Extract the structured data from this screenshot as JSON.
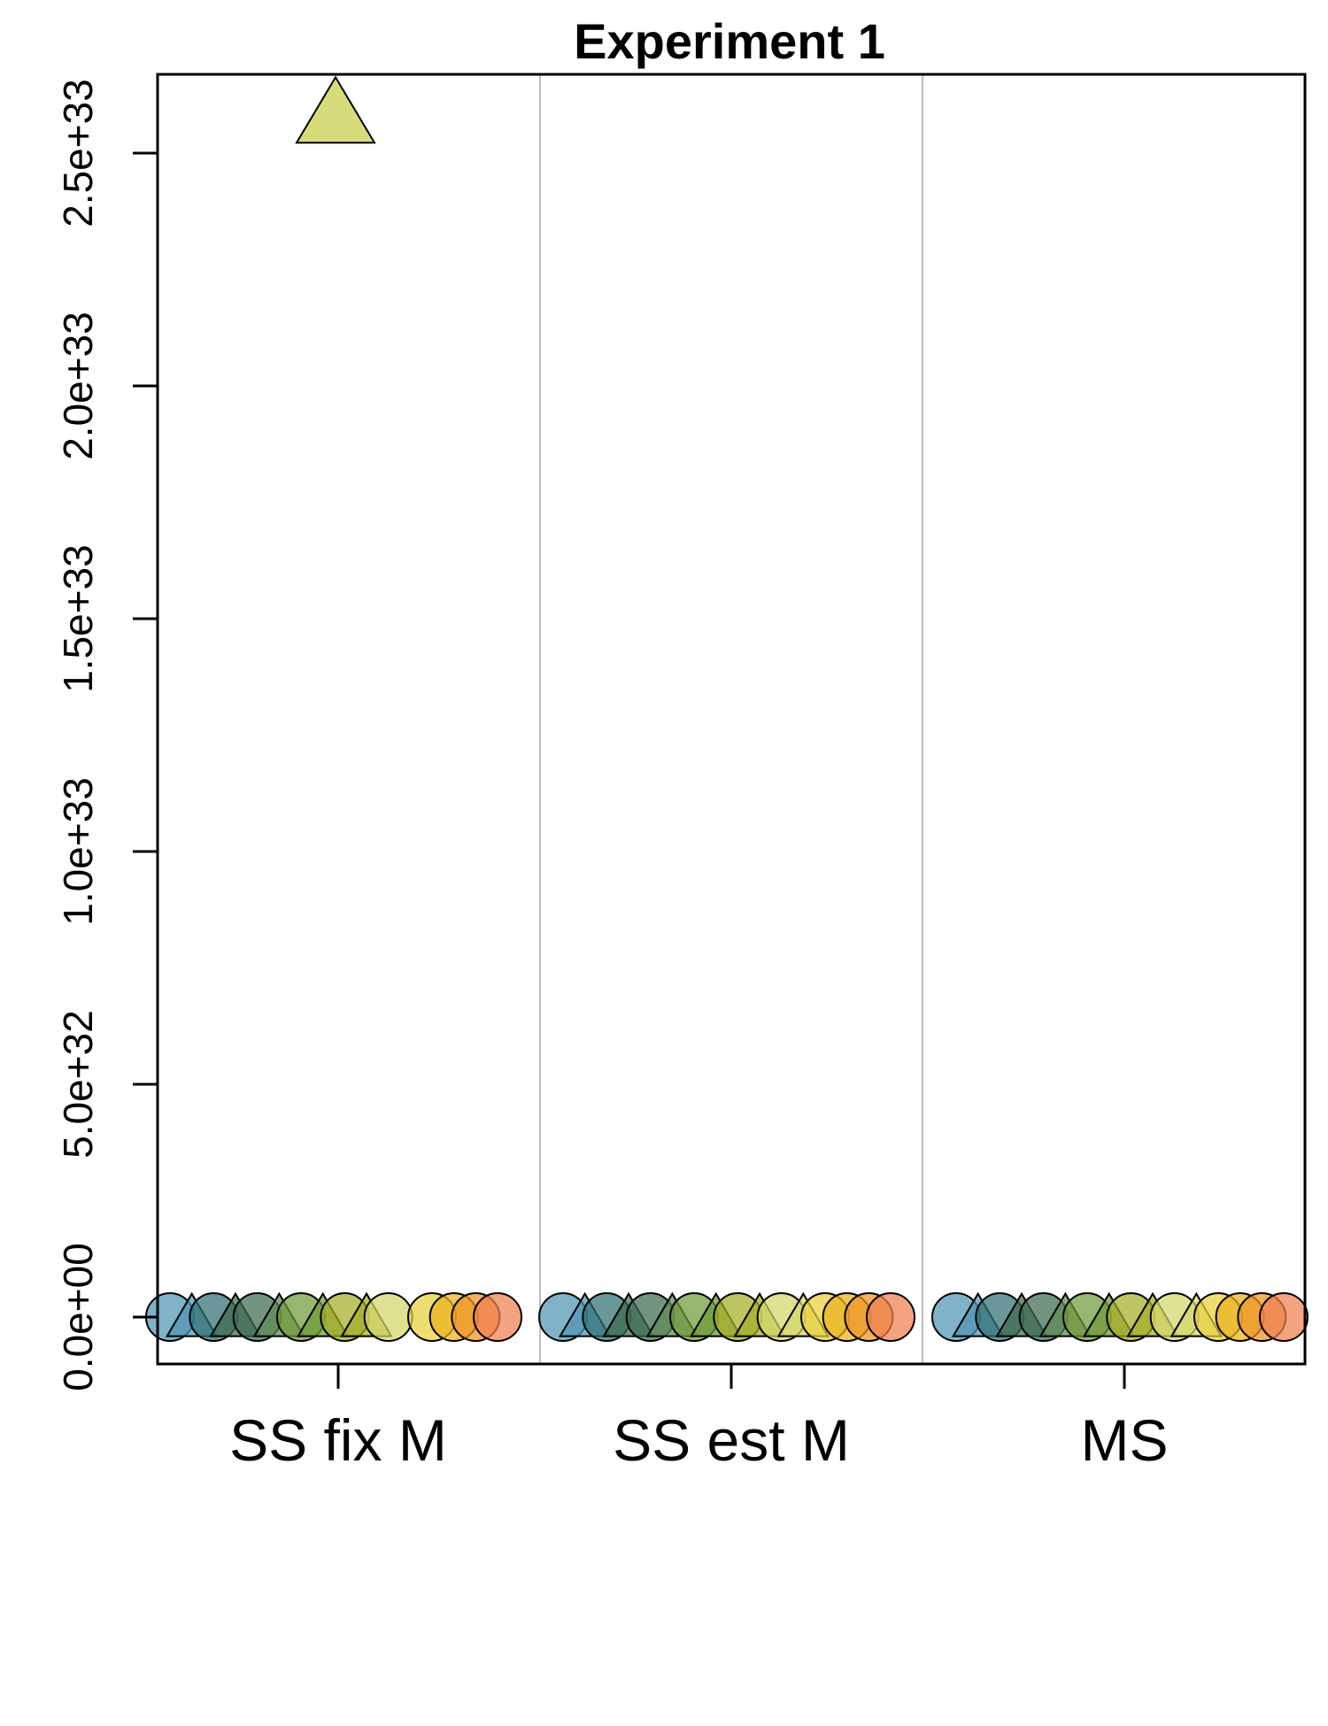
{
  "chart_data": {
    "type": "scatter",
    "title": "Experiment 1",
    "xlabel": "",
    "ylabel": "",
    "categories": [
      "SS fix M",
      "SS est M",
      "MS"
    ],
    "ylim": [
      -1e+32,
      2.68e+33
    ],
    "y_ticks": [
      0,
      5e+32,
      1e+33,
      1.5e+33,
      2e+33,
      2.5e+33
    ],
    "y_tick_labels": [
      "0.0e+00",
      "5.0e+32",
      "1.0e+33",
      "1.5e+33",
      "2.0e+33",
      "2.5e+33"
    ],
    "grid": false,
    "legend": "none",
    "colors": [
      "#4f94b3",
      "#2f6f73",
      "#3d6b4f",
      "#5f8a56",
      "#6f9a38",
      "#a3ad26",
      "#d4d76a",
      "#e8d13a",
      "#eab21d",
      "#ee9325",
      "#ef7f4e"
    ],
    "series": [
      {
        "shape": "circle",
        "values": [
          0,
          0,
          0
        ]
      },
      {
        "shape": "triangle",
        "values": [
          0,
          0,
          0
        ]
      },
      {
        "shape": "circle",
        "values": [
          0,
          0,
          0
        ]
      },
      {
        "shape": "triangle",
        "values": [
          0,
          0,
          0
        ]
      },
      {
        "shape": "circle",
        "values": [
          0,
          0,
          0
        ]
      },
      {
        "shape": "triangle",
        "values": [
          0,
          0,
          0
        ]
      },
      {
        "shape": "circle",
        "values": [
          0,
          0,
          0
        ]
      },
      {
        "shape": "triangle",
        "values": [
          0,
          0,
          0
        ]
      },
      {
        "shape": "circle",
        "values": [
          0,
          0,
          0
        ]
      },
      {
        "shape": "triangle",
        "values": [
          0,
          0,
          0
        ]
      },
      {
        "shape": "circle",
        "values": [
          0,
          0,
          0
        ]
      },
      {
        "shape": "triangle",
        "values": [
          2.6e+33,
          0,
          0
        ]
      },
      {
        "shape": "circle",
        "values": [
          0,
          0,
          0
        ]
      },
      {
        "shape": "circle",
        "values": [
          0,
          0,
          0
        ]
      },
      {
        "shape": "circle",
        "values": [
          0,
          0,
          0
        ]
      },
      {
        "shape": "circle",
        "values": [
          0,
          0,
          0
        ]
      }
    ],
    "series_colors": [
      0,
      0,
      1,
      2,
      2,
      3,
      4,
      4,
      5,
      5,
      6,
      6,
      7,
      8,
      9,
      10
    ]
  }
}
